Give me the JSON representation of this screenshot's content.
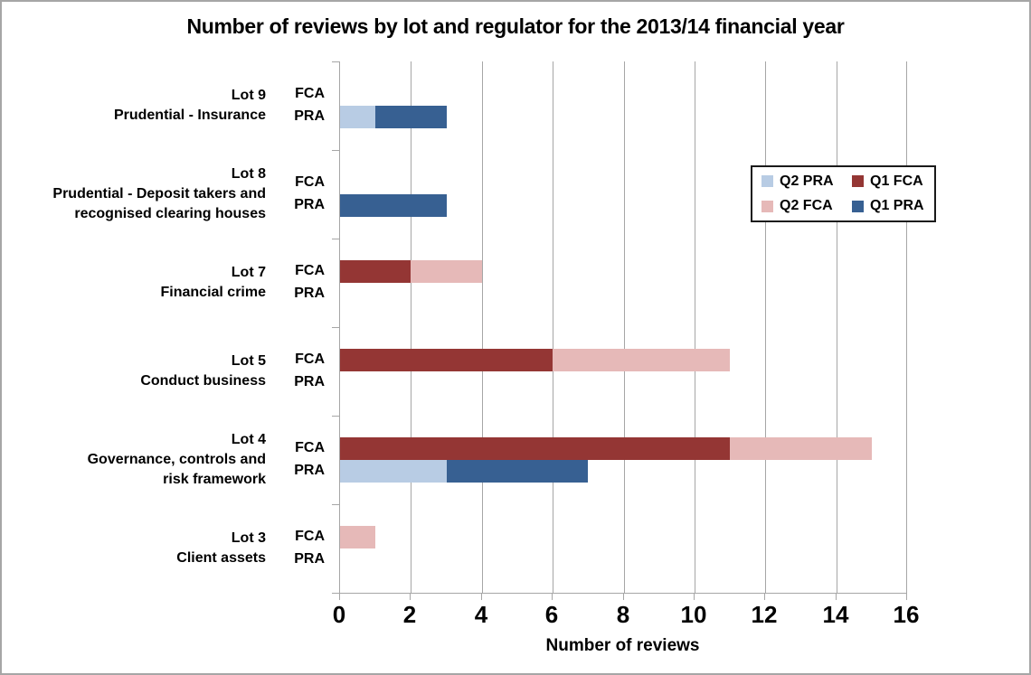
{
  "chart_data": {
    "type": "bar",
    "orientation": "horizontal",
    "stacked": true,
    "grid": true,
    "title": "Number of reviews by lot and regulator for the 2013/14 financial year",
    "xlabel": "Number of reviews",
    "xlim": [
      0,
      16
    ],
    "xticks": [
      0,
      2,
      4,
      6,
      8,
      10,
      12,
      14,
      16
    ],
    "series_colors": {
      "Q2 PRA": "#b8cce4",
      "Q1 FCA": "#943634",
      "Q2 FCA": "#e6b9b8",
      "Q1 PRA": "#376092"
    },
    "legend": {
      "position": "upper-right-inside",
      "entries": [
        {
          "label": "Q2 PRA",
          "color": "#b8cce4"
        },
        {
          "label": "Q1 FCA",
          "color": "#943634"
        },
        {
          "label": "Q2 FCA",
          "color": "#e6b9b8"
        },
        {
          "label": "Q1 PRA",
          "color": "#376092"
        }
      ]
    },
    "groups": [
      {
        "lot_lines": [
          "Lot 9",
          "Prudential - Insurance"
        ],
        "rows": [
          {
            "regulator": "FCA",
            "segments": []
          },
          {
            "regulator": "PRA",
            "segments": [
              {
                "series": "Q2 PRA",
                "value": 1
              },
              {
                "series": "Q1 PRA",
                "value": 2
              }
            ]
          }
        ]
      },
      {
        "lot_lines": [
          "Lot 8",
          "Prudential - Deposit takers and",
          "recognised clearing houses"
        ],
        "rows": [
          {
            "regulator": "FCA",
            "segments": []
          },
          {
            "regulator": "PRA",
            "segments": [
              {
                "series": "Q1 PRA",
                "value": 3
              }
            ]
          }
        ]
      },
      {
        "lot_lines": [
          "Lot 7",
          "Financial crime"
        ],
        "rows": [
          {
            "regulator": "FCA",
            "segments": [
              {
                "series": "Q1 FCA",
                "value": 2
              },
              {
                "series": "Q2 FCA",
                "value": 2
              }
            ]
          },
          {
            "regulator": "PRA",
            "segments": []
          }
        ]
      },
      {
        "lot_lines": [
          "Lot 5",
          "Conduct business"
        ],
        "rows": [
          {
            "regulator": "FCA",
            "segments": [
              {
                "series": "Q1 FCA",
                "value": 6
              },
              {
                "series": "Q2 FCA",
                "value": 5
              }
            ]
          },
          {
            "regulator": "PRA",
            "segments": []
          }
        ]
      },
      {
        "lot_lines": [
          "Lot 4",
          "Governance, controls and",
          "risk framework"
        ],
        "rows": [
          {
            "regulator": "FCA",
            "segments": [
              {
                "series": "Q1 FCA",
                "value": 11
              },
              {
                "series": "Q2 FCA",
                "value": 4
              }
            ]
          },
          {
            "regulator": "PRA",
            "segments": [
              {
                "series": "Q2 PRA",
                "value": 3
              },
              {
                "series": "Q1 PRA",
                "value": 4
              }
            ]
          }
        ]
      },
      {
        "lot_lines": [
          "Lot 3",
          "Client assets"
        ],
        "rows": [
          {
            "regulator": "FCA",
            "segments": [
              {
                "series": "Q2 FCA",
                "value": 1
              }
            ]
          },
          {
            "regulator": "PRA",
            "segments": []
          }
        ]
      }
    ]
  },
  "colors": {
    "axis": "#a6a6a6",
    "gridline": "#a6a6a6",
    "frame_border": "#a6a6a6",
    "legend_border": "#1a1a1a",
    "background": "#ffffff",
    "text": "#000000"
  }
}
